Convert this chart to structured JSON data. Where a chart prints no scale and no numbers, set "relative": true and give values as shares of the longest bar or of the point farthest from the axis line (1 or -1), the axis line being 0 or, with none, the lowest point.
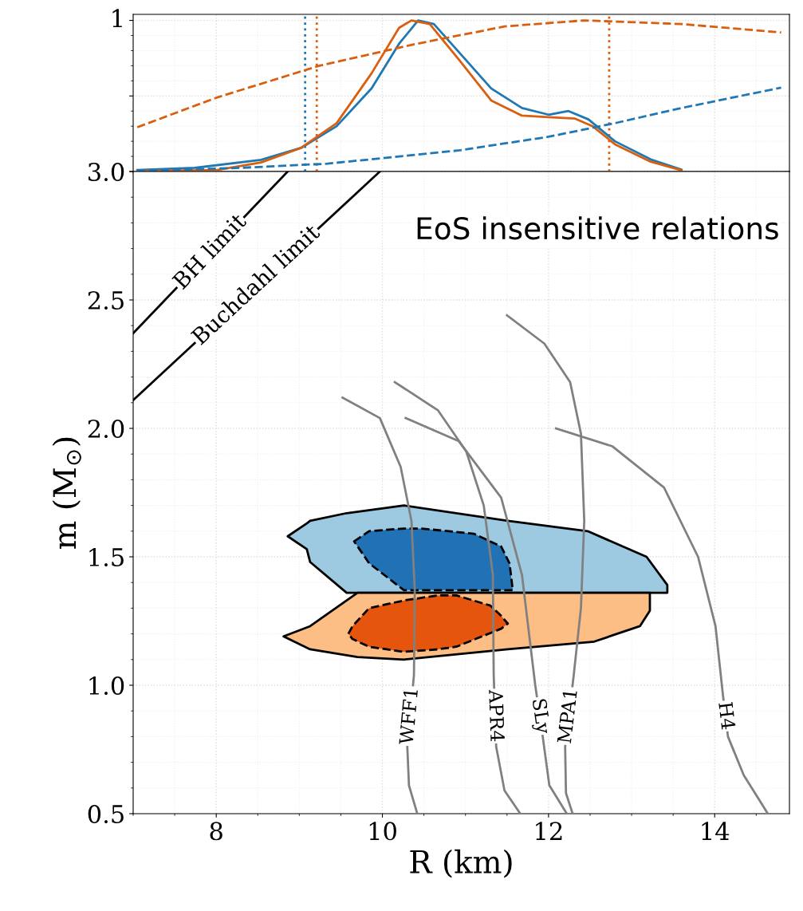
{
  "chart_data": [
    {
      "type": "line",
      "xlim": [
        7,
        14.9
      ],
      "xticks": [
        8,
        10,
        12,
        14
      ],
      "relative": true,
      "tick_labels": false,
      "grid": true,
      "annotations": [
        "1"
      ],
      "series": [
        {
          "color": "#1f77b4",
          "x": [
            7.05,
            7.74,
            8.54,
            9.02,
            9.45,
            9.87,
            10.2,
            10.43,
            10.62,
            10.93,
            11.31,
            11.68,
            12.0,
            12.24,
            12.48,
            12.8,
            13.23,
            13.6
          ],
          "values": [
            0.01,
            0.024,
            0.077,
            0.156,
            0.3,
            0.55,
            0.845,
            1.0,
            0.976,
            0.785,
            0.55,
            0.42,
            0.376,
            0.4,
            0.345,
            0.2,
            0.08,
            0.013
          ]
        },
        {
          "color": "#d95f0e",
          "x": [
            7.05,
            8.01,
            8.54,
            9.02,
            9.45,
            9.87,
            10.2,
            10.35,
            10.57,
            10.93,
            11.31,
            11.68,
            12.0,
            12.32,
            12.53,
            12.8,
            13.23,
            13.6
          ],
          "values": [
            0.003,
            0.01,
            0.06,
            0.156,
            0.32,
            0.65,
            0.95,
            1.0,
            0.976,
            0.735,
            0.47,
            0.37,
            0.36,
            0.35,
            0.3,
            0.18,
            0.065,
            0.008
          ]
        },
        {
          "color": "#d95f0e",
          "line_style": "dashed",
          "x": [
            7.05,
            8.01,
            9.24,
            10.41,
            11.47,
            12.43,
            13.6,
            14.8
          ],
          "values": [
            0.293,
            0.49,
            0.7,
            0.845,
            0.96,
            1.0,
            0.976,
            0.92
          ]
        },
        {
          "color": "#1f77b4",
          "line_style": "dashed",
          "x": [
            7.05,
            8.28,
            9.34,
            10.93,
            12.0,
            12.8,
            13.6,
            14.8
          ],
          "values": [
            0.003,
            0.024,
            0.052,
            0.14,
            0.23,
            0.32,
            0.42,
            0.555
          ]
        }
      ],
      "ref_lines": [
        {
          "axis": "x",
          "value": 9.07,
          "color": "#1f77b4",
          "line_style": "dotted"
        },
        {
          "axis": "x",
          "value": 9.21,
          "color": "#d95f0e",
          "line_style": "dotted"
        },
        {
          "axis": "x",
          "value": 12.73,
          "color": "#d95f0e",
          "line_style": "dotted"
        }
      ]
    },
    {
      "type": "line",
      "xlim": [
        7,
        14.9
      ],
      "ylim": [
        0.5,
        3.0
      ],
      "xticks": [
        8,
        10,
        12,
        14
      ],
      "yticks": [
        {
          "value": 0.5,
          "label": "0.5"
        },
        {
          "value": 1,
          "label": "1.0"
        },
        {
          "value": 1.5,
          "label": "1.5"
        },
        {
          "value": 2,
          "label": "2.0"
        },
        {
          "value": 2.5,
          "label": "2.5"
        },
        {
          "value": 3,
          "label": "3.0"
        }
      ],
      "xlabel": "R (km)",
      "ylabel": "m (M$_{⊙}$)",
      "grid": true,
      "annotations": [
        "EoS insensitive relations"
      ],
      "series": [
        {
          "type": "area",
          "color": "#9ecae1",
          "x": [
            8.86,
            9.09,
            9.13,
            9.57,
            10.26,
            11.51,
            12.47,
            13.18,
            13.43,
            13.43,
            12.47,
            11.51,
            10.26,
            9.57,
            9.13,
            9.09,
            8.86
          ],
          "values": [
            1.58,
            1.63,
            1.64,
            1.67,
            1.7,
            1.64,
            1.6,
            1.5,
            1.39,
            1.36,
            1.36,
            1.36,
            1.36,
            1.36,
            1.48,
            1.53,
            1.58
          ]
        },
        {
          "type": "area",
          "color": "#2171b5",
          "line_style": "dashed",
          "x": [
            9.66,
            9.84,
            10.26,
            10.47,
            11.1,
            11.43,
            11.53,
            11.57,
            11.57,
            10.26,
            9.84,
            9.66
          ],
          "values": [
            1.56,
            1.6,
            1.61,
            1.61,
            1.59,
            1.54,
            1.475,
            1.37,
            1.37,
            1.37,
            1.475,
            1.56
          ]
        },
        {
          "type": "area",
          "color": "#fdbe85",
          "x": [
            8.81,
            9.13,
            9.7,
            10.26,
            11.51,
            12.55,
            13.1,
            13.22,
            13.22,
            13.1,
            12.55,
            11.51,
            10.26,
            9.7,
            9.13,
            8.81
          ],
          "values": [
            1.19,
            1.23,
            1.36,
            1.36,
            1.36,
            1.36,
            1.36,
            1.36,
            1.29,
            1.23,
            1.17,
            1.14,
            1.1,
            1.11,
            1.14,
            1.19
          ]
        },
        {
          "type": "area",
          "color": "#e6550d",
          "line_style": "dashed",
          "x": [
            9.59,
            9.64,
            9.84,
            10.26,
            10.67,
            10.89,
            11.3,
            11.43,
            11.51,
            11.43,
            10.89,
            10.67,
            10.26,
            9.84,
            9.64,
            9.59
          ],
          "values": [
            1.2,
            1.23,
            1.3,
            1.33,
            1.35,
            1.35,
            1.31,
            1.27,
            1.24,
            1.22,
            1.15,
            1.14,
            1.13,
            1.15,
            1.18,
            1.2
          ]
        },
        {
          "name": "BH limit",
          "color": "#000000",
          "x": [
            7,
            8.86
          ],
          "values": [
            2.37,
            3.0
          ]
        },
        {
          "name": "Buchdahl limit",
          "color": "#000000",
          "x": [
            7,
            9.97
          ],
          "values": [
            2.11,
            3.0
          ]
        },
        {
          "name": "WFF1",
          "color": "#808080",
          "x": [
            9.52,
            9.97,
            10.22,
            10.35,
            10.39,
            10.38,
            10.3,
            10.32,
            10.42
          ],
          "values": [
            2.12,
            2.04,
            1.85,
            1.64,
            1.37,
            1.04,
            0.76,
            0.61,
            0.5
          ]
        },
        {
          "name": "APR4",
          "color": "#808080",
          "x": [
            10.15,
            10.67,
            11.01,
            11.22,
            11.33,
            11.34,
            11.37,
            11.47,
            11.66
          ],
          "values": [
            2.18,
            2.07,
            1.91,
            1.7,
            1.43,
            1.04,
            0.76,
            0.59,
            0.5
          ]
        },
        {
          "name": "SLy",
          "color": "#808080",
          "x": [
            10.28,
            10.92,
            11.43,
            11.68,
            11.84,
            11.93,
            12.01,
            12.22
          ],
          "values": [
            2.04,
            1.95,
            1.73,
            1.43,
            1.0,
            0.8,
            0.61,
            0.5
          ]
        },
        {
          "name": "MPA1",
          "color": "#808080",
          "x": [
            11.5,
            11.95,
            12.26,
            12.39,
            12.43,
            12.39,
            12.3,
            12.2,
            12.21,
            12.29
          ],
          "values": [
            2.44,
            2.33,
            2.18,
            1.98,
            1.64,
            1.3,
            1.03,
            0.76,
            0.58,
            0.5
          ]
        },
        {
          "name": "H4",
          "color": "#808080",
          "x": [
            12.09,
            12.77,
            13.39,
            13.8,
            14.01,
            14.1,
            14.16,
            14.35,
            14.64
          ],
          "values": [
            2.0,
            1.93,
            1.77,
            1.5,
            1.23,
            0.96,
            0.8,
            0.65,
            0.5
          ]
        }
      ]
    }
  ]
}
